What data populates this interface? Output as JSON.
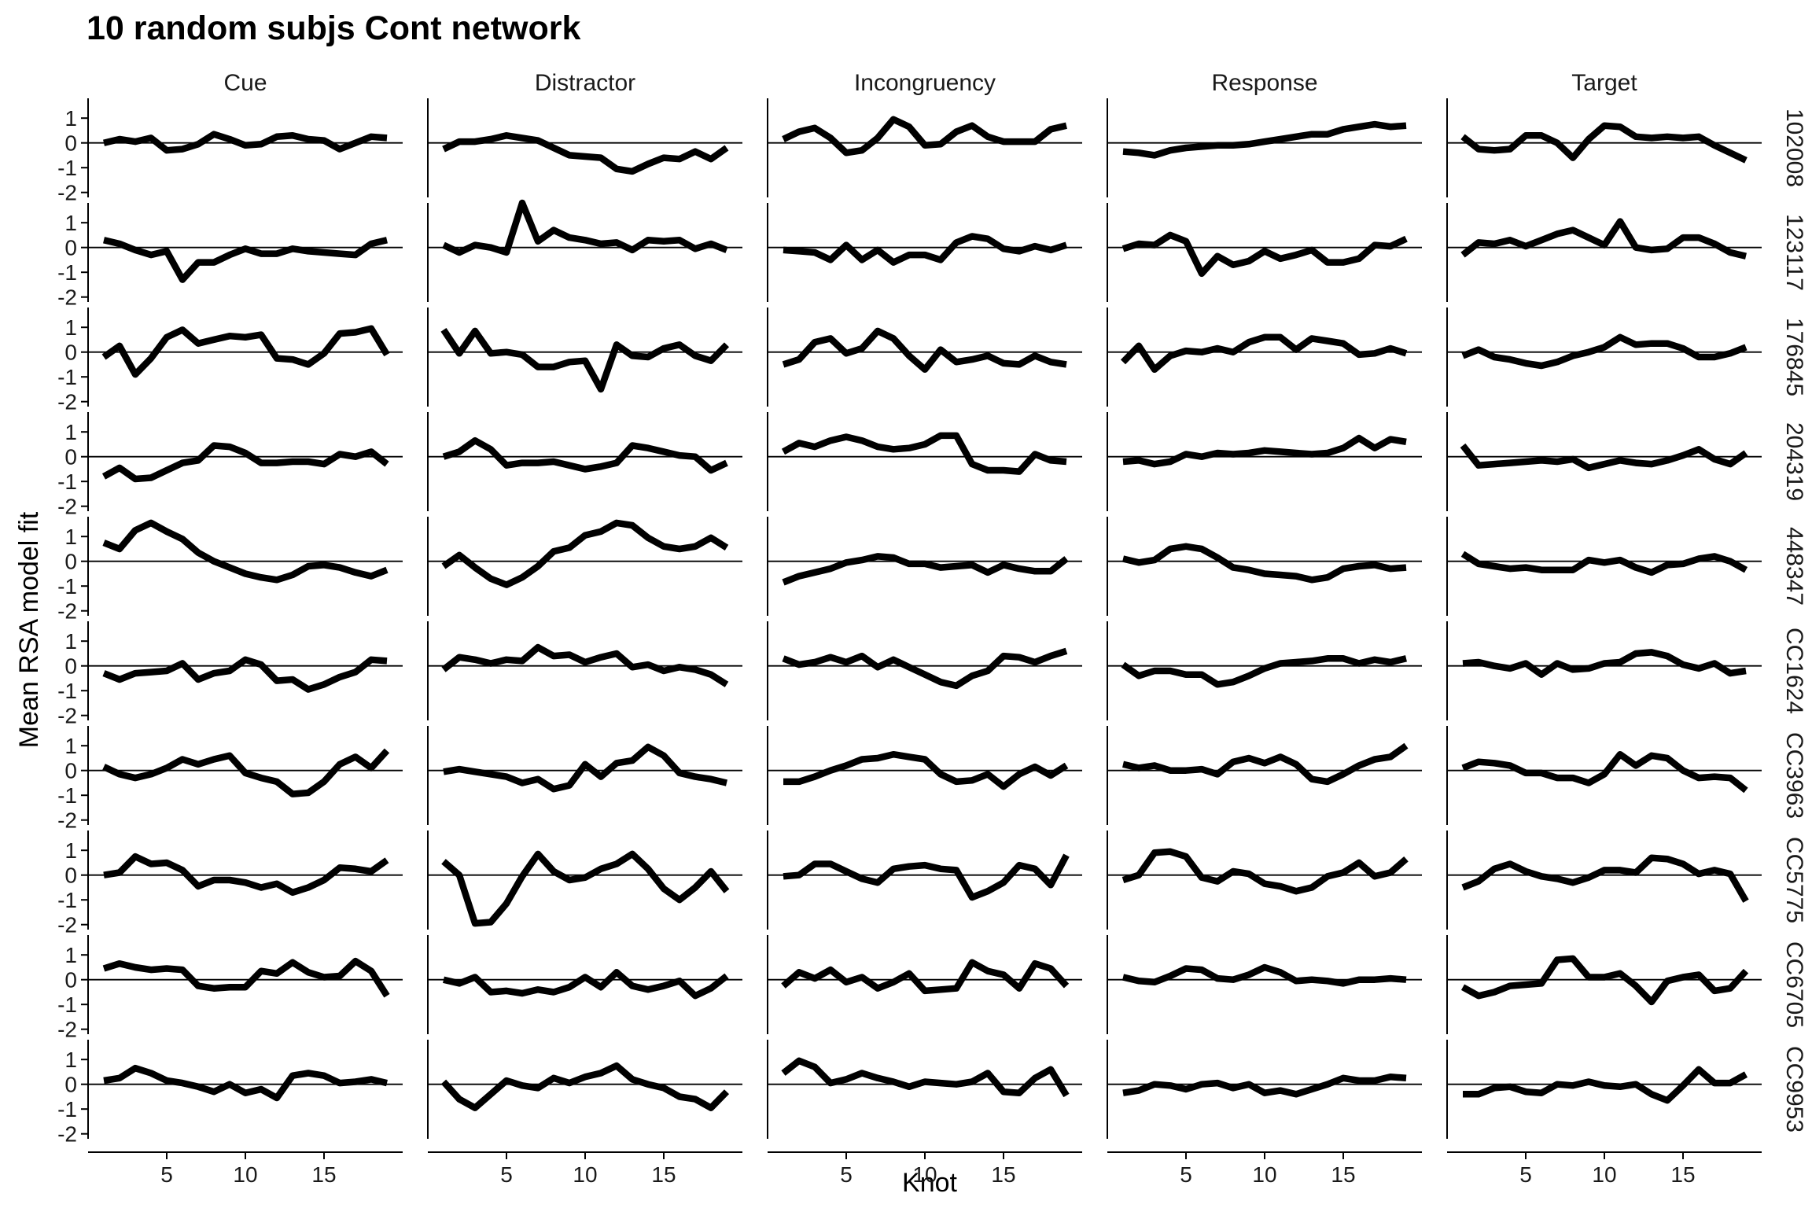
{
  "chart_data": {
    "type": "line",
    "title": "10 random subjs Cont network",
    "xlabel": "Knot",
    "ylabel": "Mean RSA model fit",
    "x": [
      1,
      2,
      3,
      4,
      5,
      6,
      7,
      8,
      9,
      10,
      11,
      12,
      13,
      14,
      15,
      16,
      17,
      18,
      19
    ],
    "xlim": [
      0,
      20
    ],
    "ylim": [
      -2.2,
      1.8
    ],
    "x_ticks": [
      5,
      10,
      15
    ],
    "y_ticks": [
      -2,
      -1,
      0,
      1
    ],
    "grid": false,
    "legend": "none",
    "columns": [
      "Cue",
      "Distractor",
      "Incongruency",
      "Response",
      "Target"
    ],
    "rows": [
      "102008",
      "123117",
      "176845",
      "204319",
      "448347",
      "CC1624",
      "CC3963",
      "CC5775",
      "CC6705",
      "CC9953"
    ],
    "panels": {
      "102008": {
        "Cue": [
          0.0,
          0.15,
          0.05,
          0.2,
          -0.3,
          -0.25,
          -0.05,
          0.35,
          0.15,
          -0.1,
          -0.05,
          0.25,
          0.3,
          0.15,
          0.1,
          -0.25,
          0.0,
          0.25,
          0.2
        ],
        "Distractor": [
          -0.25,
          0.05,
          0.05,
          0.15,
          0.3,
          0.2,
          0.1,
          -0.2,
          -0.5,
          -0.55,
          -0.6,
          -1.05,
          -1.15,
          -0.85,
          -0.6,
          -0.65,
          -0.35,
          -0.65,
          -0.2
        ],
        "Incongruency": [
          0.15,
          0.45,
          0.6,
          0.2,
          -0.4,
          -0.3,
          0.2,
          0.95,
          0.65,
          -0.1,
          -0.05,
          0.45,
          0.7,
          0.25,
          0.05,
          0.05,
          0.05,
          0.55,
          0.7
        ],
        "Response": [
          -0.35,
          -0.4,
          -0.5,
          -0.3,
          -0.2,
          -0.15,
          -0.1,
          -0.1,
          -0.05,
          0.05,
          0.15,
          0.25,
          0.35,
          0.35,
          0.55,
          0.65,
          0.75,
          0.65,
          0.7
        ],
        "Target": [
          0.25,
          -0.25,
          -0.3,
          -0.25,
          0.3,
          0.3,
          0.0,
          -0.6,
          0.15,
          0.7,
          0.65,
          0.25,
          0.2,
          0.25,
          0.2,
          0.25,
          -0.1,
          -0.4,
          -0.7
        ]
      },
      "123117": {
        "Cue": [
          0.3,
          0.15,
          -0.1,
          -0.3,
          -0.15,
          -1.3,
          -0.6,
          -0.6,
          -0.3,
          -0.05,
          -0.25,
          -0.25,
          -0.05,
          -0.15,
          -0.2,
          -0.25,
          -0.3,
          0.15,
          0.3
        ],
        "Distractor": [
          0.1,
          -0.2,
          0.1,
          0.0,
          -0.2,
          1.8,
          0.25,
          0.7,
          0.4,
          0.3,
          0.15,
          0.2,
          -0.1,
          0.3,
          0.25,
          0.3,
          -0.05,
          0.15,
          -0.1
        ],
        "Incongruency": [
          -0.1,
          -0.15,
          -0.2,
          -0.5,
          0.1,
          -0.5,
          -0.1,
          -0.6,
          -0.3,
          -0.3,
          -0.5,
          0.2,
          0.45,
          0.35,
          -0.05,
          -0.15,
          0.05,
          -0.1,
          0.1
        ],
        "Response": [
          -0.05,
          0.15,
          0.1,
          0.5,
          0.25,
          -1.05,
          -0.35,
          -0.7,
          -0.55,
          -0.15,
          -0.45,
          -0.3,
          -0.1,
          -0.6,
          -0.6,
          -0.45,
          0.1,
          0.05,
          0.35
        ],
        "Target": [
          -0.3,
          0.2,
          0.15,
          0.3,
          0.05,
          0.3,
          0.55,
          0.7,
          0.4,
          0.1,
          1.05,
          0.0,
          -0.1,
          -0.05,
          0.4,
          0.4,
          0.15,
          -0.2,
          -0.35
        ]
      },
      "176845": {
        "Cue": [
          -0.2,
          0.25,
          -0.9,
          -0.25,
          0.6,
          0.9,
          0.35,
          0.5,
          0.65,
          0.6,
          0.7,
          -0.25,
          -0.3,
          -0.5,
          -0.05,
          0.75,
          0.8,
          0.95,
          -0.1
        ],
        "Distractor": [
          0.9,
          -0.05,
          0.85,
          -0.05,
          0.0,
          -0.1,
          -0.6,
          -0.6,
          -0.4,
          -0.35,
          -1.5,
          0.3,
          -0.15,
          -0.2,
          0.15,
          0.3,
          -0.15,
          -0.35,
          0.3
        ],
        "Incongruency": [
          -0.5,
          -0.3,
          0.4,
          0.55,
          -0.05,
          0.15,
          0.85,
          0.55,
          -0.15,
          -0.7,
          0.1,
          -0.4,
          -0.3,
          -0.15,
          -0.45,
          -0.5,
          -0.15,
          -0.4,
          -0.5
        ],
        "Response": [
          -0.4,
          0.25,
          -0.7,
          -0.15,
          0.05,
          0.0,
          0.15,
          0.0,
          0.4,
          0.6,
          0.6,
          0.1,
          0.55,
          0.45,
          0.35,
          -0.1,
          -0.05,
          0.15,
          -0.05
        ],
        "Target": [
          -0.15,
          0.1,
          -0.2,
          -0.3,
          -0.45,
          -0.55,
          -0.4,
          -0.15,
          0.0,
          0.2,
          0.6,
          0.3,
          0.35,
          0.35,
          0.15,
          -0.2,
          -0.2,
          -0.05,
          0.2
        ]
      },
      "204319": {
        "Cue": [
          -0.8,
          -0.45,
          -0.9,
          -0.85,
          -0.55,
          -0.25,
          -0.15,
          0.45,
          0.4,
          0.15,
          -0.25,
          -0.25,
          -0.2,
          -0.2,
          -0.3,
          0.1,
          0.0,
          0.2,
          -0.3
        ],
        "Distractor": [
          0.0,
          0.2,
          0.65,
          0.3,
          -0.35,
          -0.25,
          -0.25,
          -0.2,
          -0.35,
          -0.5,
          -0.4,
          -0.25,
          0.45,
          0.35,
          0.2,
          0.05,
          0.0,
          -0.55,
          -0.25
        ],
        "Incongruency": [
          0.2,
          0.55,
          0.4,
          0.65,
          0.8,
          0.65,
          0.4,
          0.3,
          0.35,
          0.5,
          0.85,
          0.85,
          -0.3,
          -0.55,
          -0.55,
          -0.6,
          0.1,
          -0.15,
          -0.2
        ],
        "Response": [
          -0.2,
          -0.15,
          -0.3,
          -0.2,
          0.1,
          0.0,
          0.15,
          0.1,
          0.15,
          0.25,
          0.2,
          0.15,
          0.1,
          0.15,
          0.35,
          0.75,
          0.35,
          0.7,
          0.6
        ],
        "Target": [
          0.45,
          -0.35,
          -0.3,
          -0.25,
          -0.2,
          -0.15,
          -0.2,
          -0.1,
          -0.45,
          -0.3,
          -0.15,
          -0.25,
          -0.3,
          -0.15,
          0.05,
          0.3,
          -0.1,
          -0.3,
          0.15
        ]
      },
      "448347": {
        "Cue": [
          0.75,
          0.5,
          1.25,
          1.55,
          1.2,
          0.9,
          0.35,
          0.0,
          -0.25,
          -0.5,
          -0.65,
          -0.75,
          -0.55,
          -0.2,
          -0.15,
          -0.25,
          -0.45,
          -0.6,
          -0.35
        ],
        "Distractor": [
          -0.2,
          0.25,
          -0.25,
          -0.7,
          -0.95,
          -0.65,
          -0.2,
          0.4,
          0.55,
          1.05,
          1.2,
          1.55,
          1.45,
          0.95,
          0.6,
          0.5,
          0.6,
          0.95,
          0.55
        ],
        "Incongruency": [
          -0.85,
          -0.6,
          -0.45,
          -0.3,
          -0.05,
          0.05,
          0.2,
          0.15,
          -0.1,
          -0.1,
          -0.25,
          -0.2,
          -0.15,
          -0.45,
          -0.15,
          -0.3,
          -0.4,
          -0.4,
          0.1
        ],
        "Response": [
          0.1,
          -0.05,
          0.05,
          0.5,
          0.6,
          0.5,
          0.15,
          -0.25,
          -0.35,
          -0.5,
          -0.55,
          -0.6,
          -0.75,
          -0.65,
          -0.3,
          -0.2,
          -0.15,
          -0.3,
          -0.25
        ],
        "Target": [
          0.3,
          -0.1,
          -0.2,
          -0.3,
          -0.25,
          -0.35,
          -0.35,
          -0.35,
          0.05,
          -0.05,
          0.05,
          -0.25,
          -0.45,
          -0.15,
          -0.1,
          0.1,
          0.2,
          0.0,
          -0.35
        ]
      },
      "CC1624": {
        "Cue": [
          -0.3,
          -0.55,
          -0.3,
          -0.25,
          -0.2,
          0.1,
          -0.55,
          -0.3,
          -0.2,
          0.25,
          0.05,
          -0.6,
          -0.55,
          -0.95,
          -0.75,
          -0.45,
          -0.25,
          0.25,
          0.2
        ],
        "Distractor": [
          -0.15,
          0.35,
          0.25,
          0.1,
          0.25,
          0.2,
          0.75,
          0.4,
          0.45,
          0.15,
          0.35,
          0.5,
          -0.05,
          0.05,
          -0.2,
          -0.05,
          -0.15,
          -0.35,
          -0.75
        ],
        "Incongruency": [
          0.3,
          0.05,
          0.15,
          0.35,
          0.15,
          0.4,
          -0.05,
          0.25,
          -0.05,
          -0.35,
          -0.65,
          -0.8,
          -0.4,
          -0.2,
          0.4,
          0.35,
          0.15,
          0.4,
          0.6
        ],
        "Response": [
          0.05,
          -0.4,
          -0.2,
          -0.2,
          -0.35,
          -0.35,
          -0.75,
          -0.65,
          -0.4,
          -0.1,
          0.1,
          0.15,
          0.2,
          0.3,
          0.3,
          0.1,
          0.25,
          0.15,
          0.3
        ],
        "Target": [
          0.1,
          0.15,
          0.0,
          -0.1,
          0.1,
          -0.35,
          0.1,
          -0.15,
          -0.1,
          0.1,
          0.15,
          0.5,
          0.55,
          0.4,
          0.05,
          -0.1,
          0.1,
          -0.3,
          -0.2
        ]
      },
      "CC3963": {
        "Cue": [
          0.15,
          -0.15,
          -0.3,
          -0.15,
          0.1,
          0.45,
          0.25,
          0.45,
          0.6,
          -0.1,
          -0.3,
          -0.45,
          -0.95,
          -0.9,
          -0.45,
          0.25,
          0.55,
          0.1,
          0.8
        ],
        "Distractor": [
          -0.05,
          0.05,
          -0.05,
          -0.15,
          -0.25,
          -0.5,
          -0.35,
          -0.75,
          -0.6,
          0.25,
          -0.25,
          0.3,
          0.4,
          0.95,
          0.6,
          -0.1,
          -0.25,
          -0.35,
          -0.5
        ],
        "Incongruency": [
          -0.45,
          -0.45,
          -0.25,
          0.0,
          0.2,
          0.45,
          0.5,
          0.65,
          0.55,
          0.45,
          -0.15,
          -0.45,
          -0.4,
          -0.15,
          -0.65,
          -0.15,
          0.15,
          -0.2,
          0.2
        ],
        "Response": [
          0.25,
          0.1,
          0.2,
          0.0,
          0.0,
          0.05,
          -0.15,
          0.35,
          0.5,
          0.3,
          0.55,
          0.25,
          -0.35,
          -0.45,
          -0.15,
          0.2,
          0.45,
          0.55,
          1.0
        ],
        "Target": [
          0.1,
          0.35,
          0.3,
          0.2,
          -0.1,
          -0.1,
          -0.3,
          -0.3,
          -0.5,
          -0.15,
          0.65,
          0.2,
          0.6,
          0.5,
          0.0,
          -0.3,
          -0.25,
          -0.3,
          -0.8
        ]
      },
      "CC5775": {
        "Cue": [
          0.0,
          0.1,
          0.75,
          0.45,
          0.5,
          0.2,
          -0.45,
          -0.2,
          -0.2,
          -0.3,
          -0.5,
          -0.35,
          -0.7,
          -0.5,
          -0.2,
          0.3,
          0.25,
          0.15,
          0.6
        ],
        "Distractor": [
          0.55,
          0.0,
          -1.95,
          -1.9,
          -1.15,
          -0.05,
          0.85,
          0.15,
          -0.2,
          -0.1,
          0.25,
          0.45,
          0.85,
          0.25,
          -0.55,
          -1.0,
          -0.5,
          0.15,
          -0.65
        ],
        "Incongruency": [
          -0.05,
          0.0,
          0.45,
          0.45,
          0.15,
          -0.15,
          -0.3,
          0.25,
          0.35,
          0.4,
          0.25,
          0.2,
          -0.9,
          -0.65,
          -0.3,
          0.4,
          0.25,
          -0.4,
          0.8
        ],
        "Response": [
          -0.2,
          0.0,
          0.9,
          0.95,
          0.75,
          -0.1,
          -0.25,
          0.15,
          0.05,
          -0.35,
          -0.45,
          -0.65,
          -0.5,
          -0.05,
          0.1,
          0.5,
          -0.05,
          0.1,
          0.65
        ],
        "Target": [
          -0.5,
          -0.25,
          0.25,
          0.45,
          0.15,
          -0.05,
          -0.15,
          -0.3,
          -0.1,
          0.2,
          0.2,
          0.1,
          0.7,
          0.65,
          0.45,
          0.05,
          0.2,
          0.05,
          -1.05
        ]
      },
      "CC6705": {
        "Cue": [
          0.45,
          0.65,
          0.5,
          0.4,
          0.45,
          0.4,
          -0.25,
          -0.35,
          -0.3,
          -0.3,
          0.35,
          0.25,
          0.7,
          0.3,
          0.1,
          0.15,
          0.75,
          0.35,
          -0.65
        ],
        "Distractor": [
          0.0,
          -0.15,
          0.1,
          -0.5,
          -0.45,
          -0.55,
          -0.4,
          -0.5,
          -0.3,
          0.1,
          -0.3,
          0.3,
          -0.25,
          -0.4,
          -0.25,
          -0.05,
          -0.65,
          -0.35,
          0.15
        ],
        "Incongruency": [
          -0.25,
          0.3,
          0.05,
          0.4,
          -0.1,
          0.1,
          -0.35,
          -0.1,
          0.25,
          -0.45,
          -0.4,
          -0.35,
          0.7,
          0.35,
          0.2,
          -0.35,
          0.65,
          0.45,
          -0.25
        ],
        "Response": [
          0.1,
          -0.05,
          -0.1,
          0.15,
          0.45,
          0.4,
          0.05,
          0.0,
          0.2,
          0.5,
          0.3,
          -0.05,
          0.0,
          -0.05,
          -0.15,
          0.0,
          0.0,
          0.05,
          0.0
        ],
        "Target": [
          -0.3,
          -0.65,
          -0.5,
          -0.25,
          -0.2,
          -0.15,
          0.8,
          0.85,
          0.1,
          0.1,
          0.25,
          -0.25,
          -0.9,
          -0.05,
          0.1,
          0.2,
          -0.45,
          -0.35,
          0.35
        ]
      },
      "CC9953": {
        "Cue": [
          0.15,
          0.25,
          0.65,
          0.45,
          0.15,
          0.05,
          -0.1,
          -0.3,
          0.0,
          -0.35,
          -0.2,
          -0.55,
          0.35,
          0.45,
          0.35,
          0.05,
          0.1,
          0.2,
          0.05
        ],
        "Distractor": [
          0.1,
          -0.6,
          -0.95,
          -0.4,
          0.15,
          -0.05,
          -0.15,
          0.25,
          0.05,
          0.3,
          0.45,
          0.75,
          0.2,
          0.0,
          -0.15,
          -0.5,
          -0.6,
          -0.95,
          -0.3
        ],
        "Incongruency": [
          0.45,
          0.95,
          0.7,
          0.05,
          0.2,
          0.45,
          0.25,
          0.1,
          -0.1,
          0.1,
          0.05,
          0.0,
          0.1,
          0.45,
          -0.3,
          -0.35,
          0.25,
          0.6,
          -0.45
        ],
        "Response": [
          -0.35,
          -0.25,
          0.0,
          -0.05,
          -0.2,
          0.0,
          0.05,
          -0.15,
          0.0,
          -0.35,
          -0.25,
          -0.4,
          -0.2,
          0.0,
          0.25,
          0.15,
          0.15,
          0.3,
          0.25
        ],
        "Target": [
          -0.4,
          -0.4,
          -0.15,
          -0.1,
          -0.3,
          -0.35,
          0.0,
          -0.05,
          0.1,
          -0.05,
          -0.1,
          0.0,
          -0.4,
          -0.65,
          -0.05,
          0.6,
          0.05,
          0.05,
          0.4
        ]
      }
    }
  }
}
